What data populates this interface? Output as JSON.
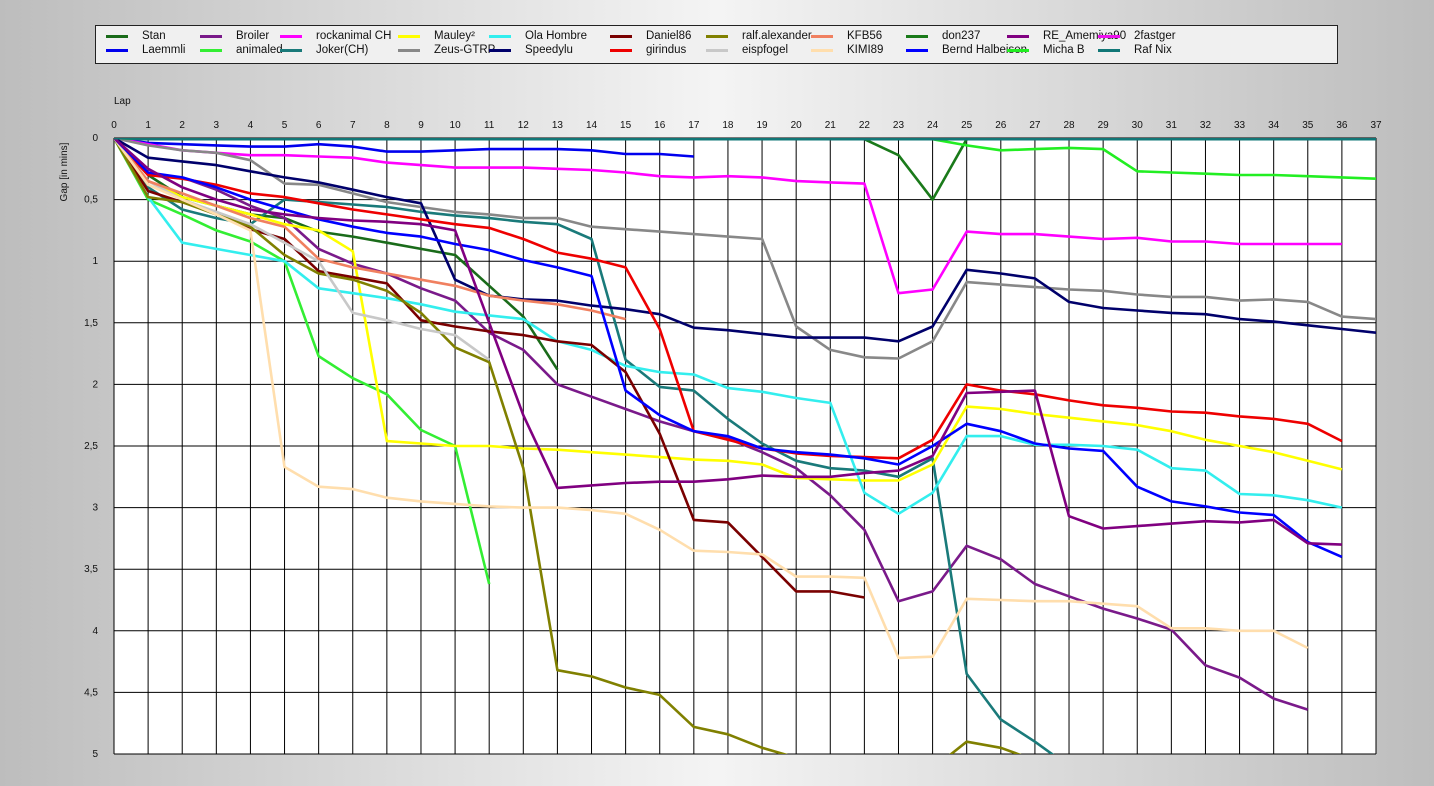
{
  "chart_data": {
    "type": "line",
    "xlabel": "Lap",
    "ylabel": "Gap [in mins]",
    "x_ticks": [
      "0",
      "1",
      "2",
      "3",
      "4",
      "5",
      "6",
      "7",
      "8",
      "9",
      "10",
      "11",
      "12",
      "13",
      "14",
      "15",
      "16",
      "17",
      "18",
      "19",
      "20",
      "21",
      "22",
      "23",
      "24",
      "25",
      "26",
      "27",
      "28",
      "29",
      "30",
      "31",
      "32",
      "33",
      "34",
      "35",
      "36",
      "37"
    ],
    "y_ticks": [
      "0",
      "0,5",
      "1",
      "1,5",
      "2",
      "2,5",
      "3",
      "3,5",
      "4",
      "4,5",
      "5"
    ],
    "xlim": [
      0,
      37
    ],
    "ylim": [
      0,
      5
    ],
    "y_inverted": true,
    "grid": true,
    "legend_position": "top",
    "series": [
      {
        "name": "Stan",
        "color": "#1a6b1a",
        "start": 0,
        "values": [
          0,
          0.3,
          0.48,
          0.55,
          0.62,
          0.65,
          0.76,
          0.8,
          0.85,
          0.9,
          0.95,
          1.2,
          1.45,
          1.88
        ]
      },
      {
        "name": "Laemmli",
        "color": "#0000ee",
        "start": 0,
        "values": [
          0,
          0.04,
          0.05,
          0.06,
          0.07,
          0.07,
          0.05,
          0.07,
          0.11,
          0.11,
          0.1,
          0.09,
          0.09,
          0.09,
          0.1,
          0.13,
          0.13,
          0.15
        ]
      },
      {
        "name": "Broiler",
        "color": "#7a1a8a",
        "start": 0,
        "values": [
          0,
          0.3,
          0.32,
          0.42,
          0.55,
          0.65,
          0.9,
          1.02,
          1.1,
          1.22,
          1.32,
          1.58,
          1.72,
          2,
          2.1,
          2.2,
          2.3,
          2.38,
          2.44,
          2.55,
          2.68,
          2.9,
          3.18,
          3.76,
          3.68,
          3.31,
          3.42,
          3.62,
          3.72,
          3.82,
          3.9,
          3.99,
          4.28,
          4.38,
          4.55,
          4.64
        ]
      },
      {
        "name": "animaled",
        "color": "#33ee33",
        "start": 0,
        "values": [
          0,
          0.5,
          0.62,
          0.75,
          0.84,
          1,
          1.77,
          1.95,
          2.08,
          2.37,
          2.5,
          3.62
        ]
      },
      {
        "name": "rockanimal CH",
        "color": "#ff00ff",
        "start": 0,
        "values": [
          0,
          0.05,
          0.1,
          0.12,
          0.14,
          0.14,
          0.15,
          0.16,
          0.2,
          0.22,
          0.24,
          0.24,
          0.24,
          0.25,
          0.26,
          0.28,
          0.31,
          0.32,
          0.31,
          0.32,
          0.35,
          0.36,
          0.37,
          1.26,
          1.23,
          0.76,
          0.78,
          0.78,
          0.8,
          0.82,
          0.81,
          0.84,
          0.84,
          0.86,
          0.86,
          0.86,
          0.86
        ]
      },
      {
        "name": "Joker(CH)",
        "color": "#1a7a7a",
        "start": 0,
        "values": [
          0,
          0.4,
          0.58,
          0.65,
          0.7,
          0.5,
          0.52,
          0.54,
          0.56,
          0.6,
          0.63,
          0.65,
          0.68,
          0.7,
          0.82,
          1.8,
          2.02,
          2.05,
          2.28,
          2.48,
          2.62,
          2.68,
          2.7,
          2.75,
          2.6,
          4.35,
          4.72,
          4.9,
          5.1
        ]
      },
      {
        "name": "Mauley²",
        "color": "#ffff00",
        "start": 0,
        "values": [
          0,
          0.35,
          0.48,
          0.55,
          0.62,
          0.7,
          0.75,
          0.92,
          2.46,
          2.48,
          2.5,
          2.5,
          2.52,
          2.53,
          2.55,
          2.57,
          2.59,
          2.61,
          2.62,
          2.65,
          2.76,
          2.77,
          2.78,
          2.78,
          2.65,
          2.18,
          2.2,
          2.24,
          2.27,
          2.3,
          2.33,
          2.38,
          2.45,
          2.5,
          2.55,
          2.62,
          2.69
        ]
      },
      {
        "name": "Zeus-GTRP",
        "color": "#888888",
        "start": 0,
        "values": [
          0,
          0.06,
          0.1,
          0.12,
          0.18,
          0.37,
          0.38,
          0.45,
          0.52,
          0.56,
          0.6,
          0.62,
          0.65,
          0.65,
          0.72,
          0.74,
          0.76,
          0.78,
          0.8,
          0.82,
          1.53,
          1.72,
          1.78,
          1.79,
          1.65,
          1.17,
          1.19,
          1.21,
          1.23,
          1.24,
          1.27,
          1.29,
          1.29,
          1.32,
          1.31,
          1.33,
          1.45,
          1.47
        ]
      },
      {
        "name": "Ola Hombre",
        "color": "#33eeee",
        "start": 0,
        "values": [
          0,
          0.48,
          0.85,
          0.9,
          0.95,
          1,
          1.22,
          1.26,
          1.3,
          1.35,
          1.41,
          1.44,
          1.47,
          1.65,
          1.72,
          1.85,
          1.9,
          1.92,
          2.03,
          2.06,
          2.11,
          2.15,
          2.88,
          3.05,
          2.88,
          2.42,
          2.42,
          2.49,
          2.49,
          2.5,
          2.53,
          2.68,
          2.7,
          2.89,
          2.9,
          2.94,
          3
        ]
      },
      {
        "name": "Speedylu",
        "color": "#00006b",
        "start": 0,
        "values": [
          0,
          0.16,
          0.19,
          0.22,
          0.27,
          0.32,
          0.36,
          0.42,
          0.48,
          0.53,
          1.15,
          1.28,
          1.31,
          1.32,
          1.36,
          1.39,
          1.43,
          1.54,
          1.56,
          1.59,
          1.62,
          1.62,
          1.62,
          1.65,
          1.53,
          1.07,
          1.1,
          1.14,
          1.33,
          1.38,
          1.4,
          1.42,
          1.43,
          1.47,
          1.49,
          1.52,
          1.55,
          1.58
        ]
      },
      {
        "name": "Daniel86",
        "color": "#7a0000",
        "start": 0,
        "values": [
          0,
          0.43,
          0.52,
          0.6,
          0.74,
          0.82,
          1.08,
          1.13,
          1.18,
          1.48,
          1.53,
          1.57,
          1.6,
          1.65,
          1.68,
          1.9,
          2.4,
          3.1,
          3.12,
          3.4,
          3.68,
          3.68,
          3.73
        ]
      },
      {
        "name": "girindus",
        "color": "#ee0000",
        "start": 0,
        "values": [
          0,
          0.3,
          0.33,
          0.38,
          0.45,
          0.48,
          0.53,
          0.58,
          0.62,
          0.66,
          0.7,
          0.73,
          0.82,
          0.93,
          0.98,
          1.05,
          1.55,
          2.38,
          2.45,
          2.52,
          2.56,
          2.58,
          2.59,
          2.6,
          2.45,
          2,
          2.05,
          2.08,
          2.13,
          2.17,
          2.19,
          2.22,
          2.23,
          2.26,
          2.28,
          2.32,
          2.46
        ]
      },
      {
        "name": "ralf.alexander",
        "color": "#808000",
        "start": 0,
        "values": [
          0,
          0.48,
          0.52,
          0.62,
          0.72,
          0.95,
          1.1,
          1.15,
          1.24,
          1.42,
          1.7,
          1.82,
          2.68,
          4.32,
          4.37,
          4.46,
          4.52,
          4.78,
          4.84,
          4.95,
          5.03,
          5.12,
          5.15,
          5.18,
          5.12,
          4.9,
          4.95,
          5.05
        ]
      },
      {
        "name": "eispfogel",
        "color": "#c8c8c8",
        "start": 0,
        "values": [
          0,
          0.35,
          0.5,
          0.6,
          0.7,
          0.85,
          1,
          1.42,
          1.48,
          1.55,
          1.6,
          1.8
        ]
      },
      {
        "name": "KFB56",
        "color": "#f08060",
        "start": 0,
        "values": [
          0,
          0.35,
          0.45,
          0.55,
          0.65,
          0.72,
          0.98,
          1.05,
          1.1,
          1.15,
          1.2,
          1.28,
          1.32,
          1.35,
          1.4,
          1.47
        ]
      },
      {
        "name": "KIMI89",
        "color": "#ffdead",
        "start": 0,
        "values": [
          0,
          0.38,
          0.5,
          0.62,
          0.75,
          2.67,
          2.83,
          2.85,
          2.92,
          2.95,
          2.97,
          2.99,
          3,
          3,
          3.02,
          3.05,
          3.18,
          3.35,
          3.36,
          3.38,
          3.56,
          3.56,
          3.57,
          4.22,
          4.21,
          3.74,
          3.75,
          3.76,
          3.76,
          3.78,
          3.8,
          3.98,
          3.98,
          4,
          4,
          4.14
        ]
      },
      {
        "name": "don237",
        "color": "#1a7a1a",
        "start": 0,
        "values": [
          0,
          0.01,
          0.01,
          0.01,
          0.01,
          0.01,
          0.01,
          0.01,
          0.01,
          0.01,
          0.01,
          0.01,
          0.01,
          0.01,
          0.01,
          0.01,
          0.01,
          0.01,
          0.01,
          0.01,
          0.01,
          0.01,
          0.01,
          0.14,
          0.5,
          0.01,
          0.01,
          0.01,
          0.01,
          0.01,
          0.01,
          0.01,
          0.01,
          0.01,
          0.01,
          0.01,
          0.01,
          0.01
        ]
      },
      {
        "name": "Bernd Halbeisen",
        "color": "#0000ff",
        "start": 0,
        "values": [
          0,
          0.28,
          0.32,
          0.4,
          0.5,
          0.58,
          0.66,
          0.72,
          0.77,
          0.8,
          0.86,
          0.91,
          0.99,
          1.05,
          1.12,
          2.05,
          2.25,
          2.38,
          2.42,
          2.52,
          2.55,
          2.57,
          2.6,
          2.65,
          2.5,
          2.32,
          2.38,
          2.48,
          2.52,
          2.54,
          2.83,
          2.95,
          2.99,
          3.04,
          3.06,
          3.28,
          3.4
        ]
      },
      {
        "name": "RE_Amemiya90",
        "color": "#800080",
        "start": 0,
        "values": [
          0,
          0.25,
          0.4,
          0.5,
          0.58,
          0.62,
          0.65,
          0.67,
          0.68,
          0.7,
          0.75,
          1.5,
          2.25,
          2.84,
          2.82,
          2.8,
          2.79,
          2.79,
          2.77,
          2.74,
          2.75,
          2.75,
          2.72,
          2.7,
          2.58,
          2.07,
          2.06,
          2.05,
          3.07,
          3.17,
          3.15,
          3.13,
          3.11,
          3.12,
          3.1,
          3.29,
          3.3
        ]
      },
      {
        "name": "Micha B",
        "color": "#22ee22",
        "start": 0,
        "values": [
          0,
          0.01,
          0.01,
          0.01,
          0.01,
          0.01,
          0.01,
          0.01,
          0.01,
          0.01,
          0.01,
          0.01,
          0.01,
          0.01,
          0.01,
          0.01,
          0.01,
          0.01,
          0.01,
          0.01,
          0.01,
          0.01,
          0.01,
          0.01,
          0.01,
          0.06,
          0.1,
          0.09,
          0.08,
          0.09,
          0.27,
          0.28,
          0.29,
          0.3,
          0.3,
          0.31,
          0.32,
          0.33
        ]
      },
      {
        "name": "2fastger",
        "color": "#ee11ee",
        "start": 0,
        "values": []
      },
      {
        "name": "Raf Nix",
        "color": "#117777",
        "start": 0,
        "values": [
          0,
          0.01,
          0.01,
          0.01,
          0.01,
          0.01,
          0.01,
          0.01,
          0.01,
          0.01,
          0.01,
          0.01,
          0.01,
          0.01,
          0.01,
          0.01,
          0.01,
          0.01,
          0.01,
          0.01,
          0.01,
          0.01,
          0.01,
          0.01,
          0.01,
          0.01,
          0.01,
          0.01,
          0.01,
          0.01,
          0.01,
          0.01,
          0.01,
          0.01,
          0.01,
          0.01,
          0.01,
          0.01
        ]
      }
    ]
  }
}
